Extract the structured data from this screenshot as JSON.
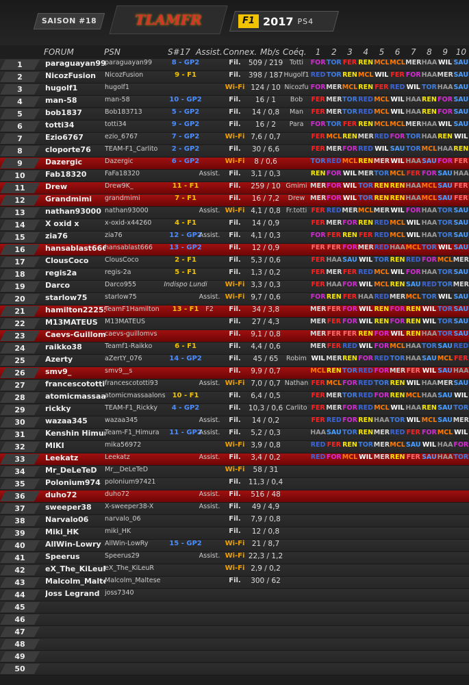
{
  "header": {
    "season": "SAISON #18",
    "logo_text": "TLAMFR",
    "f1_badge": "F1",
    "f1_year": "2017",
    "platform": "PS4"
  },
  "columns": {
    "forum": "FORUM",
    "psn": "PSN",
    "s17": "S#17",
    "assist": "Assist.",
    "connex": "Connex.",
    "mbs": "Mb/s",
    "coeq": "Coéq.",
    "races": [
      "1",
      "2",
      "3",
      "4",
      "5",
      "6",
      "7",
      "8",
      "9",
      "10"
    ]
  },
  "rows": [
    {
      "n": "1",
      "forum": "paraguayan99",
      "psn": "paraguayan99",
      "s17": "8 - GP2",
      "assist": "",
      "conn": "Fil.",
      "mbs": "509 / 219",
      "coeq": "Totti",
      "teams": [
        "FOR",
        "TOR",
        "FER",
        "REN",
        "MCL",
        "MCL",
        "MER",
        "HAA",
        "WIL",
        "SAU"
      ]
    },
    {
      "n": "2",
      "forum": "NicozFusion",
      "psn": "NicozFusion",
      "s17": "9 - F1",
      "assist": "",
      "conn": "Fil.",
      "mbs": "398 / 187",
      "coeq": "Hugolf1",
      "teams": [
        "RED",
        "TOR",
        "REN",
        "MCL",
        "WIL",
        "FER",
        "FOR",
        "HAA",
        "MER",
        "SAU"
      ]
    },
    {
      "n": "3",
      "forum": "hugolf1",
      "psn": "hugolf1",
      "s17": "",
      "assist": "",
      "conn": "Wi-Fi",
      "mbs": "124 / 10",
      "coeq": "Nicozfu",
      "teams": [
        "FOR",
        "MER",
        "MCL",
        "REN",
        "FER",
        "RED",
        "WIL",
        "TOR",
        "HAA",
        "SAU"
      ]
    },
    {
      "n": "4",
      "forum": "man-58",
      "psn": "man-58",
      "s17": "10 - GP2",
      "assist": "",
      "conn": "Fil.",
      "mbs": "16 / 1",
      "coeq": "Bob",
      "teams": [
        "FER",
        "MER",
        "TOR",
        "RED",
        "MCL",
        "WIL",
        "HAA",
        "REN",
        "FOR",
        "SAU"
      ]
    },
    {
      "n": "5",
      "forum": "bob1837",
      "psn": "Bob183713",
      "s17": "5 - GP2",
      "assist": "",
      "conn": "Fil.",
      "mbs": "14 / 0,8",
      "coeq": "Man",
      "teams": [
        "FER",
        "MER",
        "TOR",
        "RED",
        "MCL",
        "WIL",
        "HAA",
        "REN",
        "FOR",
        "SAU"
      ]
    },
    {
      "n": "6",
      "forum": "totti34",
      "psn": "totti34",
      "s17": "9 - GP2",
      "assist": "",
      "conn": "Fil.",
      "mbs": "16 / 2",
      "coeq": "Para",
      "teams": [
        "FOR",
        "TOR",
        "FER",
        "REN",
        "MCL",
        "MCL",
        "MER",
        "HAA",
        "WIL",
        "SAU"
      ]
    },
    {
      "n": "7",
      "forum": "Ezio6767",
      "psn": "ezio_6767",
      "s17": "7 - GP2",
      "assist": "",
      "conn": "Wi-Fi",
      "mbs": "7,6 / 0,7",
      "coeq": "",
      "teams": [
        "FER",
        "MCL",
        "REN",
        "MER",
        "RED",
        "FOR",
        "TOR",
        "HAA",
        "REN",
        "WIL"
      ]
    },
    {
      "n": "8",
      "forum": "cloporte76",
      "psn": "TEAM-F1_Carlito",
      "s17": "2 - GP2",
      "assist": "",
      "conn": "Fil.",
      "mbs": "30 / 6,6",
      "coeq": "",
      "teams": [
        "FER",
        "MER",
        "FOR",
        "RED",
        "WIL",
        "SAU",
        "TOR",
        "MCL",
        "HAA",
        "REN"
      ]
    },
    {
      "n": "9",
      "forum": "Dazergic",
      "psn": "Dazergic",
      "s17": "6 - GP2",
      "assist": "",
      "conn": "Wi-Fi",
      "mbs": "8 / 0,6",
      "coeq": "",
      "teams": [
        "TOR",
        "RED",
        "MCL",
        "REN",
        "MER",
        "WIL",
        "HAA",
        "SAU",
        "FOR",
        "FER"
      ],
      "hl": true
    },
    {
      "n": "10",
      "forum": "Fab18320",
      "psn": "FaFa18320",
      "s17": "",
      "assist": "Assist.",
      "conn": "Fil.",
      "mbs": "3,1 / 0,3",
      "coeq": "",
      "teams": [
        "REN",
        "FOR",
        "WIL",
        "MER",
        "TOR",
        "MCL",
        "FER",
        "FOR",
        "SAU",
        "HAA"
      ]
    },
    {
      "n": "11",
      "forum": "Drew",
      "psn": "Drew9K_",
      "s17": "11 - F1",
      "assist": "",
      "conn": "Fil.",
      "mbs": "259 / 10",
      "coeq": "Gmimi",
      "teams": [
        "MER",
        "FOR",
        "WIL",
        "TOR",
        "REN",
        "REN",
        "HAA",
        "MCL",
        "SAU",
        "FER"
      ],
      "hl": true
    },
    {
      "n": "12",
      "forum": "Grandmimi",
      "psn": "grandmimi",
      "s17": "7 - F1",
      "assist": "",
      "conn": "Fil.",
      "mbs": "16 / 7,2",
      "coeq": "Drew",
      "teams": [
        "MER",
        "FOR",
        "WIL",
        "TOR",
        "REN",
        "REN",
        "HAA",
        "MCL",
        "SAU",
        "FER"
      ],
      "hl": true
    },
    {
      "n": "13",
      "forum": "nathan93000",
      "psn": "nathan93000",
      "s17": "",
      "assist": "Assist.",
      "conn": "Wi-Fi",
      "mbs": "4,1 / 0,8",
      "coeq": "Fr.totti",
      "teams": [
        "FER",
        "RED",
        "MER",
        "MCL",
        "MER",
        "WIL",
        "FOR",
        "HAA",
        "TOR",
        "SAU"
      ]
    },
    {
      "n": "14",
      "forum": "X oxid x",
      "psn": "x-oxid-x44260",
      "s17": "4 - F1",
      "assist": "",
      "conn": "Fil.",
      "mbs": "14 / 0,9",
      "coeq": "",
      "teams": [
        "FER",
        "MER",
        "FOR",
        "REN",
        "RED",
        "MCL",
        "WIL",
        "HAA",
        "TOR",
        "SAU"
      ]
    },
    {
      "n": "15",
      "forum": "zia76",
      "psn": "zia76",
      "s17": "12 - GP2",
      "assist": "Assist.",
      "conn": "Fil.",
      "mbs": "4,1 / 0,3",
      "coeq": "",
      "teams": [
        "FOR",
        "FER",
        "REN",
        "FER",
        "RED",
        "MCL",
        "WIL",
        "HAA",
        "TOR",
        "SAU"
      ]
    },
    {
      "n": "16",
      "forum": "hansablast666",
      "psn": "hansablast666",
      "s17": "13 - GP2",
      "assist": "",
      "conn": "Fil.",
      "mbs": "12 / 0,9",
      "coeq": "",
      "teams": [
        "FER",
        "FER",
        "FOR",
        "MER",
        "RED",
        "HAA",
        "MCL",
        "TOR",
        "WIL",
        "SAU"
      ],
      "hl": true
    },
    {
      "n": "17",
      "forum": "ClousCoco",
      "psn": "ClousCoco",
      "s17": "2 - F1",
      "assist": "",
      "conn": "Fil.",
      "mbs": "5,3 / 0,6",
      "coeq": "",
      "teams": [
        "FER",
        "HAA",
        "SAU",
        "WIL",
        "TOR",
        "REN",
        "RED",
        "FOR",
        "MCL",
        "MER"
      ]
    },
    {
      "n": "18",
      "forum": "regis2a",
      "psn": "regis-2a",
      "s17": "5 - F1",
      "assist": "",
      "conn": "Fil.",
      "mbs": "1,3 / 0,2",
      "coeq": "",
      "teams": [
        "FER",
        "MER",
        "FER",
        "RED",
        "MCL",
        "WIL",
        "FOR",
        "HAA",
        "TOR",
        "SAU"
      ]
    },
    {
      "n": "19",
      "forum": "Darco",
      "psn": "Darco955",
      "s17": "Indispo Lundi",
      "assist": "",
      "conn": "Wi-Fi",
      "mbs": "3,3 / 0,3",
      "coeq": "",
      "teams": [
        "FER",
        "HAA",
        "FOR",
        "WIL",
        "MCL",
        "REN",
        "SAU",
        "RED",
        "TOR",
        "MER"
      ]
    },
    {
      "n": "20",
      "forum": "starlow75",
      "psn": "starlow75",
      "s17": "",
      "assist": "Assist.",
      "conn": "Wi-Fi",
      "mbs": "9,7 / 0,6",
      "coeq": "",
      "teams": [
        "FOR",
        "REN",
        "FER",
        "HAA",
        "RED",
        "MER",
        "MCL",
        "TOR",
        "WIL",
        "SAU"
      ]
    },
    {
      "n": "21",
      "forum": "hamilton222555",
      "psn": "TeamF1Hamilton",
      "s17": "13 - F1",
      "assist": "F2",
      "conn": "Fil.",
      "mbs": "34 / 3,8",
      "coeq": "",
      "teams": [
        "MER",
        "FER",
        "FOR",
        "WIL",
        "REN",
        "FOR",
        "REN",
        "WIL",
        "TOR",
        "SAU"
      ],
      "hl": true
    },
    {
      "n": "22",
      "forum": "M13MATEUS",
      "psn": "M13MATEUS",
      "s17": "",
      "assist": "",
      "conn": "Fil.",
      "mbs": "27 / 4,3",
      "coeq": "",
      "teams": [
        "MER",
        "FER",
        "FOR",
        "WIL",
        "REN",
        "FOR",
        "REN",
        "WIL",
        "TOR",
        "SAU"
      ]
    },
    {
      "n": "23",
      "forum": "Caevs-Guillomvs",
      "psn": "caevs-guillomvs",
      "s17": "",
      "assist": "",
      "conn": "Fil.",
      "mbs": "9,1 / 0,8",
      "coeq": "",
      "teams": [
        "MER",
        "FER",
        "FER",
        "REN",
        "FOR",
        "WIL",
        "REN",
        "HAA",
        "TOR",
        "SAU"
      ],
      "hl": true
    },
    {
      "n": "24",
      "forum": "raikko38",
      "psn": "Teamf1-Raikko",
      "s17": "6 - F1",
      "assist": "",
      "conn": "Fil.",
      "mbs": "4,4 / 0,6",
      "coeq": "",
      "teams": [
        "MER",
        "FER",
        "RED",
        "WIL",
        "FOR",
        "MCL",
        "HAA",
        "TOR",
        "SAU",
        "RED"
      ]
    },
    {
      "n": "25",
      "forum": "Azerty",
      "psn": "aZertY_076",
      "s17": "14 - GP2",
      "assist": "",
      "conn": "Fil.",
      "mbs": "45 / 65",
      "coeq": "Robim",
      "teams": [
        "WIL",
        "MER",
        "REN",
        "FOR",
        "RED",
        "TOR",
        "HAA",
        "SAU",
        "MCL",
        "FER"
      ]
    },
    {
      "n": "26",
      "forum": "smv9_",
      "psn": "smv9__s",
      "s17": "",
      "assist": "",
      "conn": "Fil.",
      "mbs": "9,9 / 0,7",
      "coeq": "",
      "teams": [
        "MCL",
        "REN",
        "TOR",
        "RED",
        "FOR",
        "MER",
        "FER",
        "WIL",
        "SAU",
        "HAA"
      ],
      "hl": true
    },
    {
      "n": "27",
      "forum": "francescototti93",
      "psn": "francescototti93",
      "s17": "",
      "assist": "Assist.",
      "conn": "Wi-Fi",
      "mbs": "7,0 / 0,7",
      "coeq": "Nathan",
      "teams": [
        "FER",
        "MCL",
        "FOR",
        "RED",
        "TOR",
        "REN",
        "WIL",
        "HAA",
        "MER",
        "SAU"
      ]
    },
    {
      "n": "28",
      "forum": "atomicmassaalons",
      "psn": "atomicmassaalons",
      "s17": "10 - F1",
      "assist": "",
      "conn": "Fil.",
      "mbs": "6,4 / 0,5",
      "coeq": "",
      "teams": [
        "FER",
        "MER",
        "TOR",
        "RED",
        "FOR",
        "REN",
        "MCL",
        "HAA",
        "SAU",
        "WIL"
      ]
    },
    {
      "n": "29",
      "forum": "rickky",
      "psn": "TEAM-F1_Rickky",
      "s17": "4 - GP2",
      "assist": "",
      "conn": "Fil.",
      "mbs": "10,3 / 0,6",
      "coeq": "Carlito",
      "teams": [
        "FER",
        "MER",
        "FOR",
        "RED",
        "MCL",
        "WIL",
        "HAA",
        "REN",
        "SAU",
        "TOR"
      ]
    },
    {
      "n": "30",
      "forum": "wazaa345",
      "psn": "wazaa345",
      "s17": "",
      "assist": "Assist.",
      "conn": "Fil.",
      "mbs": "14 / 0,2",
      "coeq": "",
      "teams": [
        "FER",
        "RED",
        "FOR",
        "REN",
        "HAA",
        "TOR",
        "WIL",
        "MCL",
        "SAU",
        "MER"
      ]
    },
    {
      "n": "31",
      "forum": "Kenshin Himura",
      "psn": "Team-F1_Himura",
      "s17": "11 - GP2",
      "assist": "Assist.",
      "conn": "Fil.",
      "mbs": "5,2 / 0,3",
      "coeq": "",
      "teams": [
        "HAA",
        "SAU",
        "TOR",
        "REN",
        "MER",
        "RED",
        "FER",
        "FOR",
        "MCL",
        "WIL"
      ]
    },
    {
      "n": "32",
      "forum": "MIKI",
      "psn": "mika56972",
      "s17": "",
      "assist": "",
      "conn": "Wi-Fi",
      "mbs": "3,9 / 0,8",
      "coeq": "",
      "teams": [
        "RED",
        "FER",
        "REN",
        "TOR",
        "MER",
        "MCL",
        "SAU",
        "WIL",
        "HAA",
        "FOR"
      ]
    },
    {
      "n": "33",
      "forum": "Leekatz",
      "psn": "Leekatz",
      "s17": "",
      "assist": "Assist.",
      "conn": "Fil.",
      "mbs": "3,4 / 0,2",
      "coeq": "",
      "teams": [
        "RED",
        "FOR",
        "MCL",
        "WIL",
        "MER",
        "REN",
        "FER",
        "SAU",
        "HAA",
        "TOR"
      ],
      "hl": true
    },
    {
      "n": "34",
      "forum": "Mr_DeLeTeD",
      "psn": "Mr__DeLeTeD",
      "s17": "",
      "assist": "",
      "conn": "Wi-Fi",
      "mbs": "58 / 31",
      "coeq": "",
      "teams": []
    },
    {
      "n": "35",
      "forum": "Polonium974",
      "psn": "polonium97421",
      "s17": "",
      "assist": "",
      "conn": "Fil.",
      "mbs": "11,3 / 0,4",
      "coeq": "",
      "teams": []
    },
    {
      "n": "36",
      "forum": "duho72",
      "psn": "duho72",
      "s17": "",
      "assist": "Assist.",
      "conn": "Fil.",
      "mbs": "516 / 48",
      "coeq": "",
      "teams": [],
      "hl": true
    },
    {
      "n": "37",
      "forum": "sweeper38",
      "psn": "X-sweeper38-X",
      "s17": "",
      "assist": "Assist.",
      "conn": "Fil.",
      "mbs": "49 / 4,9",
      "coeq": "",
      "teams": []
    },
    {
      "n": "38",
      "forum": "Narvalo06",
      "psn": "narvalo_06",
      "s17": "",
      "assist": "",
      "conn": "Fil.",
      "mbs": "7,9 / 0,8",
      "coeq": "",
      "teams": []
    },
    {
      "n": "39",
      "forum": "Miki_HK",
      "psn": "miki_HK",
      "s17": "",
      "assist": "",
      "conn": "Fil.",
      "mbs": "12 / 0,8",
      "coeq": "",
      "teams": []
    },
    {
      "n": "40",
      "forum": "AllWin-Lowry",
      "psn": "AllWin-LowRy",
      "s17": "15 - GP2",
      "assist": "",
      "conn": "Wi-Fi",
      "mbs": "21 / 8,7",
      "coeq": "",
      "teams": []
    },
    {
      "n": "41",
      "forum": "Speerus",
      "psn": "Speerus29",
      "s17": "",
      "assist": "Assist.",
      "conn": "Wi-Fi",
      "mbs": "22,3 / 1,2",
      "coeq": "",
      "teams": []
    },
    {
      "n": "42",
      "forum": "eX_The_KiLeuR",
      "psn": "eX_The_KiLeuR",
      "s17": "",
      "assist": "",
      "conn": "Wi-Fi",
      "mbs": "2,9 / 0,2",
      "coeq": "",
      "teams": []
    },
    {
      "n": "43",
      "forum": "Malcolm_Maltese",
      "psn": "Malcolm_Maltese",
      "s17": "",
      "assist": "",
      "conn": "Fil.",
      "mbs": "300 / 62",
      "coeq": "",
      "teams": []
    },
    {
      "n": "44",
      "forum": "Joss Legrand",
      "psn": "joss7340",
      "s17": "",
      "assist": "",
      "conn": "",
      "mbs": "",
      "coeq": "",
      "teams": []
    },
    {
      "n": "45",
      "forum": "",
      "psn": "",
      "s17": "",
      "assist": "",
      "conn": "",
      "mbs": "",
      "coeq": "",
      "teams": []
    },
    {
      "n": "46",
      "forum": "",
      "psn": "",
      "s17": "",
      "assist": "",
      "conn": "",
      "mbs": "",
      "coeq": "",
      "teams": []
    },
    {
      "n": "47",
      "forum": "",
      "psn": "",
      "s17": "",
      "assist": "",
      "conn": "",
      "mbs": "",
      "coeq": "",
      "teams": []
    },
    {
      "n": "48",
      "forum": "",
      "psn": "",
      "s17": "",
      "assist": "",
      "conn": "",
      "mbs": "",
      "coeq": "",
      "teams": []
    },
    {
      "n": "49",
      "forum": "",
      "psn": "",
      "s17": "",
      "assist": "",
      "conn": "",
      "mbs": "",
      "coeq": "",
      "teams": []
    },
    {
      "n": "50",
      "forum": "",
      "psn": "",
      "s17": "",
      "assist": "",
      "conn": "",
      "mbs": "",
      "coeq": "",
      "teams": []
    }
  ]
}
